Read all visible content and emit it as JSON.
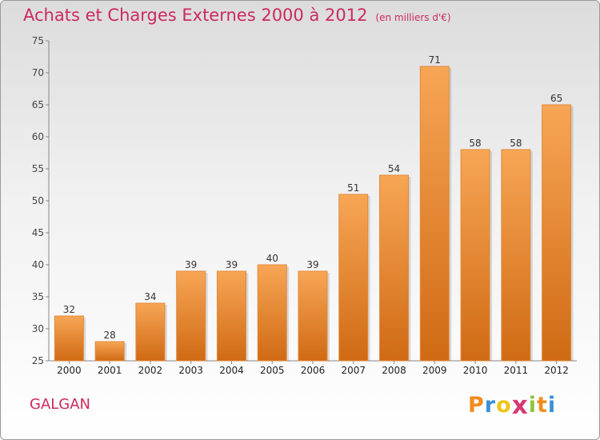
{
  "header": {
    "title": "Achats et Charges Externes 2000 à 2012",
    "unit": "(en milliers d'€)"
  },
  "footer": {
    "commune": "GALGAN",
    "logo_letters": [
      "P",
      "r",
      "o",
      "x",
      "i",
      "t",
      "i"
    ],
    "logo_colors": [
      "#f28c1c",
      "#3b8fd8",
      "#f0c419",
      "#d63a75",
      "#8dc63f",
      "#f28c1c",
      "#3b8fd8"
    ]
  },
  "chart_data": {
    "type": "bar",
    "categories": [
      "2000",
      "2001",
      "2002",
      "2003",
      "2004",
      "2005",
      "2006",
      "2007",
      "2008",
      "2009",
      "2010",
      "2011",
      "2012"
    ],
    "values": [
      32,
      28,
      34,
      39,
      39,
      40,
      39,
      51,
      54,
      71,
      58,
      58,
      65
    ],
    "ylim": [
      25,
      75
    ],
    "yticks": [
      25,
      30,
      35,
      40,
      45,
      50,
      55,
      60,
      65,
      70,
      75
    ],
    "grid": false,
    "bar_color": "#f39b3d",
    "bar_color_dark": "#cf6b14"
  }
}
